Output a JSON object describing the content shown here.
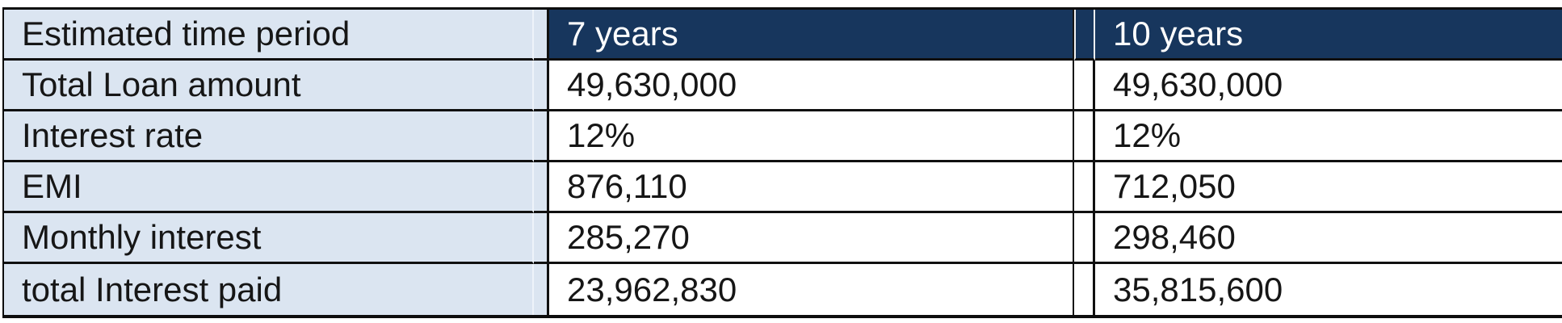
{
  "table": {
    "header": {
      "label": "Estimated time period",
      "col_7_years": "7 years",
      "col_10_years": "10 years"
    },
    "rows": [
      {
        "label": "Total Loan amount",
        "y7": "49,630,000",
        "y10": "49,630,000"
      },
      {
        "label": "Interest rate",
        "y7": "12%",
        "y10": "12%"
      },
      {
        "label": "EMI",
        "y7": "876,110",
        "y10": "712,050"
      },
      {
        "label": "Monthly interest",
        "y7": "285,270",
        "y10": "298,460"
      },
      {
        "label": "total Interest paid",
        "y7": "23,962,830",
        "y10": "35,815,600"
      }
    ],
    "colors": {
      "header_bg": "#17365d",
      "header_text": "#ffffff",
      "label_column_bg": "#dbe5f1",
      "body_bg": "#ffffff",
      "border": "#0d0d0d",
      "body_text": "#161616"
    }
  }
}
